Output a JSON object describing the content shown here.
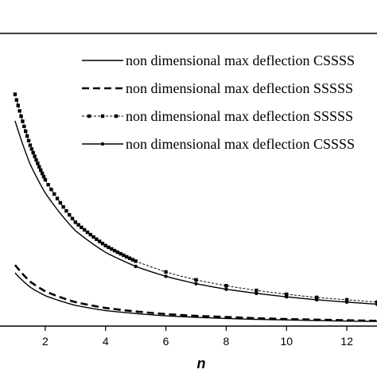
{
  "chart_data": {
    "type": "line",
    "title": "",
    "xlabel": "n",
    "ylabel": "",
    "xlim": [
      0.5,
      13
    ],
    "ylim": [
      0,
      1
    ],
    "x_ticks": [
      "2",
      "4",
      "6",
      "8",
      "10",
      "12"
    ],
    "grid": false,
    "legend_position": "top-right",
    "series": [
      {
        "name": "non dimensional max deflection CSSSS",
        "style": "solid",
        "color": "#000000",
        "x": [
          1,
          1.5,
          2,
          3,
          4,
          5,
          6,
          7,
          8,
          9,
          10,
          11,
          12,
          13
        ],
        "y": [
          0.182,
          0.133,
          0.104,
          0.071,
          0.053,
          0.043,
          0.035,
          0.03,
          0.026,
          0.023,
          0.021,
          0.019,
          0.017,
          0.016
        ]
      },
      {
        "name": "non dimensional max deflection SSSSS",
        "style": "dashed",
        "color": "#000000",
        "x": [
          1,
          1.5,
          2,
          3,
          4,
          5,
          6,
          7,
          8,
          9,
          10,
          11,
          12,
          13
        ],
        "y": [
          0.209,
          0.152,
          0.119,
          0.082,
          0.062,
          0.05,
          0.041,
          0.035,
          0.031,
          0.027,
          0.024,
          0.022,
          0.02,
          0.018
        ]
      },
      {
        "name": "non dimensional max deflection SSSSS",
        "style": "dotted-square-markers",
        "color": "#000000",
        "x": [
          1,
          1.5,
          2,
          3,
          4,
          5,
          6,
          7,
          8,
          9,
          10,
          11,
          12,
          13
        ],
        "y": [
          0.792,
          0.618,
          0.5,
          0.355,
          0.275,
          0.222,
          0.185,
          0.158,
          0.138,
          0.122,
          0.109,
          0.098,
          0.09,
          0.082
        ]
      },
      {
        "name": "non dimensional max deflection CSSSS",
        "style": "solid-dot-markers",
        "color": "#000000",
        "x": [
          1,
          1.5,
          2,
          3,
          4,
          5,
          6,
          7,
          8,
          9,
          10,
          11,
          12,
          13
        ],
        "y": [
          0.701,
          0.553,
          0.455,
          0.326,
          0.252,
          0.204,
          0.17,
          0.145,
          0.126,
          0.112,
          0.1,
          0.09,
          0.082,
          0.075
        ]
      }
    ]
  }
}
